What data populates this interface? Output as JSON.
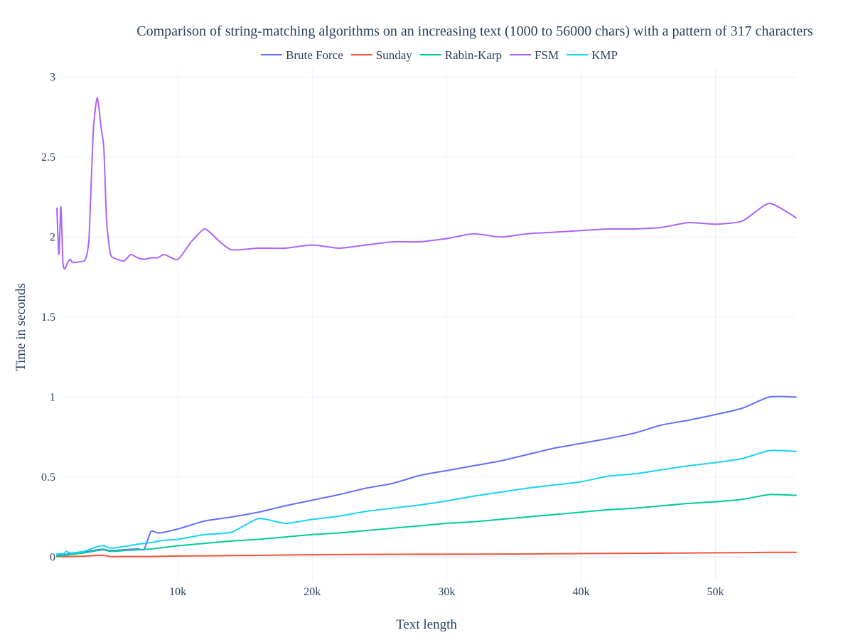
{
  "chart_data": {
    "type": "line",
    "title": "Comparison of string-matching algorithms on an increasing text (1000 to 56000 chars) with a pattern of 317 characters",
    "xlabel": "Text length",
    "ylabel": "Time in seconds",
    "xlim": [
      1000,
      56000
    ],
    "ylim": [
      -0.15,
      3.05
    ],
    "xticks": [
      10000,
      20000,
      30000,
      40000,
      50000
    ],
    "xtick_labels": [
      "10k",
      "20k",
      "30k",
      "40k",
      "50k"
    ],
    "yticks": [
      0,
      0.5,
      1,
      1.5,
      2,
      2.5,
      3
    ],
    "ytick_labels": [
      "0",
      "0.5",
      "1",
      "1.5",
      "2",
      "2.5",
      "3"
    ],
    "grid": true,
    "legend_position": "top-center",
    "series": [
      {
        "name": "Brute Force",
        "color": "#636efa",
        "x": [
          1000,
          1500,
          2000,
          3000,
          4000,
          4500,
          5000,
          6000,
          7000,
          7500,
          8000,
          8500,
          9000,
          10000,
          11000,
          12000,
          14000,
          16000,
          18000,
          20000,
          22000,
          24000,
          26000,
          28000,
          30000,
          32000,
          34000,
          36000,
          38000,
          40000,
          42000,
          44000,
          46000,
          48000,
          50000,
          52000,
          54000,
          56000
        ],
        "y": [
          0.01,
          0.015,
          0.02,
          0.03,
          0.045,
          0.048,
          0.04,
          0.045,
          0.05,
          0.05,
          0.16,
          0.15,
          0.155,
          0.175,
          0.2,
          0.225,
          0.25,
          0.28,
          0.32,
          0.355,
          0.39,
          0.43,
          0.46,
          0.51,
          0.54,
          0.57,
          0.6,
          0.64,
          0.68,
          0.71,
          0.74,
          0.775,
          0.825,
          0.855,
          0.89,
          0.93,
          1.0,
          1.0
        ]
      },
      {
        "name": "Sunday",
        "color": "#ef553b",
        "x": [
          1000,
          2000,
          3000,
          4000,
          4500,
          5000,
          6000,
          7000,
          8000,
          10000,
          12000,
          14000,
          16000,
          18000,
          20000,
          24000,
          28000,
          32000,
          36000,
          40000,
          44000,
          48000,
          52000,
          54000,
          56000
        ],
        "y": [
          0.002,
          0.003,
          0.005,
          0.01,
          0.01,
          0.003,
          0.003,
          0.003,
          0.003,
          0.006,
          0.007,
          0.009,
          0.01,
          0.012,
          0.014,
          0.016,
          0.017,
          0.018,
          0.019,
          0.021,
          0.023,
          0.025,
          0.027,
          0.029,
          0.029
        ]
      },
      {
        "name": "Rabin-Karp",
        "color": "#00cc96",
        "x": [
          1000,
          2000,
          3000,
          4000,
          4500,
          5000,
          6000,
          7000,
          8000,
          9000,
          10000,
          12000,
          14000,
          16000,
          18000,
          20000,
          22000,
          24000,
          26000,
          28000,
          30000,
          32000,
          34000,
          36000,
          38000,
          40000,
          42000,
          44000,
          46000,
          48000,
          50000,
          52000,
          54000,
          56000
        ],
        "y": [
          0.005,
          0.015,
          0.025,
          0.04,
          0.045,
          0.035,
          0.04,
          0.045,
          0.05,
          0.06,
          0.07,
          0.085,
          0.1,
          0.11,
          0.125,
          0.14,
          0.15,
          0.165,
          0.18,
          0.195,
          0.21,
          0.22,
          0.235,
          0.25,
          0.265,
          0.28,
          0.295,
          0.305,
          0.32,
          0.335,
          0.345,
          0.36,
          0.39,
          0.385
        ]
      },
      {
        "name": "FSM",
        "color": "#ab63fa",
        "x": [
          1000,
          1150,
          1300,
          1450,
          1600,
          1800,
          2000,
          2200,
          3000,
          3200,
          3400,
          3700,
          4000,
          4300,
          4500,
          4700,
          5000,
          5500,
          6000,
          6500,
          7000,
          7500,
          8000,
          8500,
          9000,
          10000,
          11000,
          12000,
          13000,
          14000,
          16000,
          18000,
          20000,
          22000,
          24000,
          26000,
          28000,
          30000,
          32000,
          34000,
          36000,
          38000,
          40000,
          42000,
          44000,
          46000,
          48000,
          50000,
          52000,
          54000,
          56000
        ],
        "y": [
          2.18,
          1.89,
          2.19,
          1.84,
          1.8,
          1.84,
          1.86,
          1.84,
          1.85,
          1.88,
          2.0,
          2.65,
          2.87,
          2.68,
          2.55,
          2.1,
          1.89,
          1.86,
          1.85,
          1.89,
          1.87,
          1.86,
          1.87,
          1.87,
          1.89,
          1.86,
          1.97,
          2.05,
          1.98,
          1.92,
          1.93,
          1.93,
          1.95,
          1.93,
          1.95,
          1.97,
          1.97,
          1.99,
          2.02,
          2.0,
          2.02,
          2.03,
          2.04,
          2.05,
          2.05,
          2.06,
          2.09,
          2.08,
          2.1,
          2.21,
          2.12
        ]
      },
      {
        "name": "KMP",
        "color": "#19d3f3",
        "x": [
          1000,
          1500,
          1700,
          2000,
          3000,
          4000,
          4500,
          5000,
          6000,
          7000,
          8000,
          9000,
          10000,
          12000,
          14000,
          16000,
          18000,
          20000,
          22000,
          24000,
          26000,
          28000,
          30000,
          32000,
          34000,
          36000,
          38000,
          40000,
          42000,
          44000,
          46000,
          48000,
          50000,
          52000,
          54000,
          56000
        ],
        "y": [
          0.02,
          0.02,
          0.035,
          0.025,
          0.035,
          0.065,
          0.07,
          0.055,
          0.065,
          0.08,
          0.09,
          0.105,
          0.11,
          0.14,
          0.155,
          0.24,
          0.21,
          0.235,
          0.255,
          0.285,
          0.305,
          0.325,
          0.35,
          0.38,
          0.405,
          0.43,
          0.45,
          0.47,
          0.505,
          0.52,
          0.545,
          0.57,
          0.59,
          0.615,
          0.665,
          0.66
        ]
      }
    ]
  }
}
